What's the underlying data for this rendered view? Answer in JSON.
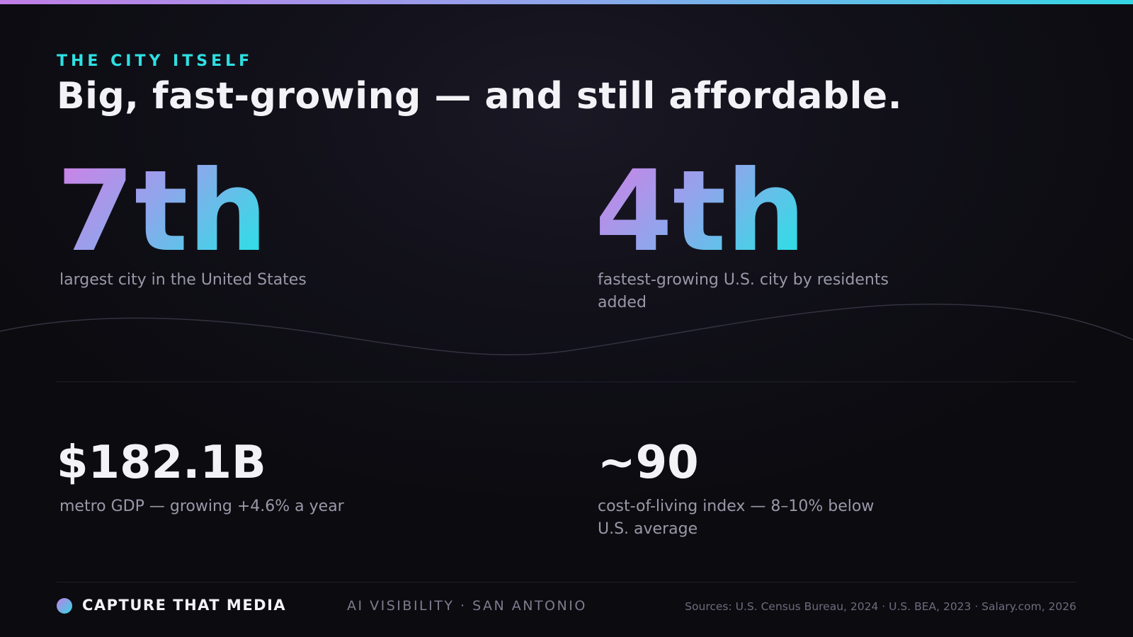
{
  "colors": {
    "accent_cyan": "#2de0e2",
    "accent_violet": "#d37ee6",
    "background": "#0c0c12",
    "text_primary": "#f3f2f7",
    "text_muted": "#9a98a8"
  },
  "header": {
    "eyebrow": "THE CITY ITSELF",
    "headline": "Big, fast-growing — and still affordable."
  },
  "stats": {
    "rank_size": {
      "value": "7th",
      "description": "largest city in the United States"
    },
    "rank_growth": {
      "value": "4th",
      "description": "fastest-growing U.S. city by residents added"
    },
    "gdp": {
      "value": "$182.1B",
      "description": "metro GDP — growing +4.6% a year"
    },
    "cost_of_living": {
      "value": "~90",
      "description": "cost-of-living index — 8–10% below U.S. average"
    }
  },
  "footer": {
    "brand_icon": "gradient-dot-icon",
    "brand": "CAPTURE THAT MEDIA",
    "tagline": "AI VISIBILITY · SAN ANTONIO",
    "sources": "Sources: U.S. Census Bureau, 2024 · U.S. BEA, 2023 · Salary.com, 2026"
  }
}
